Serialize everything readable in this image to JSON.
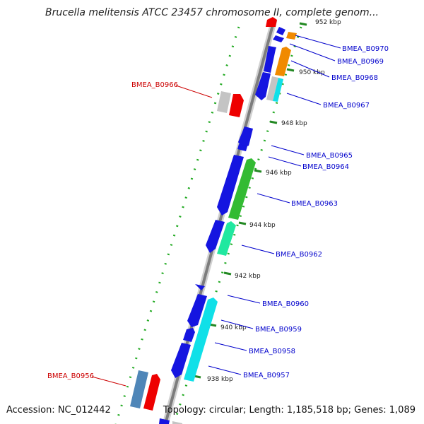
{
  "title": "Brucella melitensis ATCC 23457 chromosome II, complete genom...",
  "accession": "Accession: NC_012442",
  "summary": "Topology: circular; Length: 1,185,518 bp; Genes: 1,089",
  "colors": {
    "backbone": "#888888",
    "dotted_track": "#22aa22",
    "label_forward": "#0000cc",
    "label_reverse": "#cc0000",
    "tick_text": "#222222"
  },
  "ticks": [
    "952 kbp",
    "950 kbp",
    "948 kbp",
    "946 kbp",
    "944 kbp",
    "942 kbp",
    "940 kbp",
    "938 kbp"
  ],
  "gene_labels": [
    {
      "text": "BMEA_B0970",
      "strand": "forward"
    },
    {
      "text": "BMEA_B0969",
      "strand": "forward"
    },
    {
      "text": "BMEA_B0968",
      "strand": "forward"
    },
    {
      "text": "BMEA_B0967",
      "strand": "forward"
    },
    {
      "text": "BMEA_B0966",
      "strand": "reverse"
    },
    {
      "text": "BMEA_B0965",
      "strand": "forward"
    },
    {
      "text": "BMEA_B0964",
      "strand": "forward"
    },
    {
      "text": "BMEA_B0963",
      "strand": "forward"
    },
    {
      "text": "BMEA_B0962",
      "strand": "forward"
    },
    {
      "text": "BMEA_B0960",
      "strand": "forward"
    },
    {
      "text": "BMEA_B0959",
      "strand": "forward"
    },
    {
      "text": "BMEA_B0958",
      "strand": "forward"
    },
    {
      "text": "BMEA_B0957",
      "strand": "forward"
    },
    {
      "text": "BMEA_B0956",
      "strand": "reverse"
    }
  ],
  "gene_colors": {
    "blue": "#1515e0",
    "orange": "#f08a00",
    "cyan": "#10e0e8",
    "green": "#33bb33",
    "mint": "#20e8a0",
    "grey": "#c4c4c4",
    "red": "#ee0000",
    "steel": "#4f86b8"
  }
}
